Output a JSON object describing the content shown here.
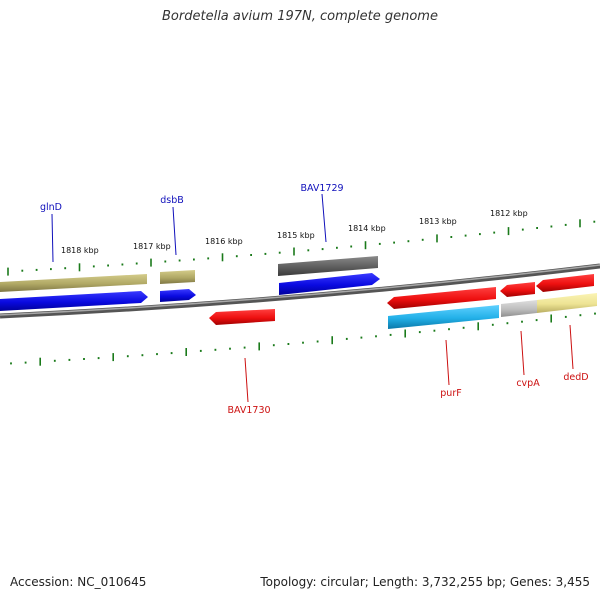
{
  "title": "Bordetella avium 197N, complete genome",
  "footer": {
    "accession": "Accession: NC_010645",
    "topology": "Topology: circular; Length: 3,732,255 bp; Genes: 3,455"
  },
  "colors": {
    "backbone": "#808080",
    "tick": "#1a7a1a",
    "label_forward": "#1010bb",
    "label_reverse": "#cc1010",
    "cds_forward": "#1e1eee",
    "cds_reverse": "#ee1c1c",
    "cog_olive": "#b5ad6c",
    "cog_cyan": "#27b4e8",
    "cog_grey": "#bdbdbd",
    "cog_khaki": "#ede393",
    "cog_dark": "#666666"
  },
  "tick_labels": [
    "1818 kbp",
    "1817 kbp",
    "1816 kbp",
    "1815 kbp",
    "1814 kbp",
    "1813 kbp",
    "1812 kbp"
  ],
  "genes_forward": [
    "glnD",
    "dsbB",
    "BAV1729"
  ],
  "genes_reverse": [
    "BAV1730",
    "purF",
    "cvpA",
    "dedD"
  ]
}
